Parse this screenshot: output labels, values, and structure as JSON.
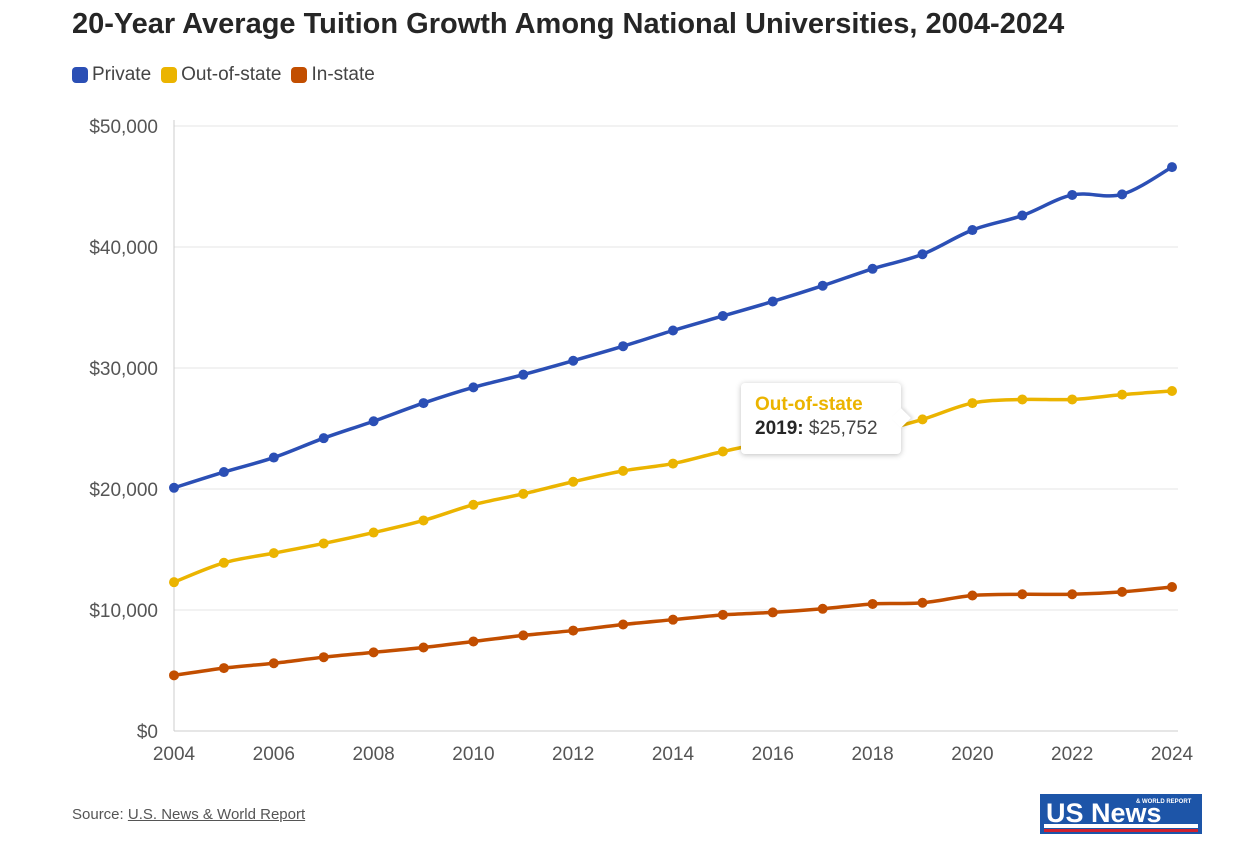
{
  "colors": {
    "private": "#2b4fb5",
    "out_of_state": "#ebb400",
    "in_state": "#c24e00",
    "logo_blue": "#1d55a8",
    "logo_red": "#d0202e"
  },
  "source": {
    "label": "Source:",
    "link": "U.S. News & World Report"
  },
  "logo": {
    "text_main": "US News",
    "text_small": "& WORLD REPORT"
  },
  "tooltip": {
    "series": "Out-of-state",
    "year": "2019:",
    "value": "$25,752"
  },
  "chart_data": {
    "type": "line",
    "title": "20-Year Average Tuition Growth Among National Universities, 2004-2024",
    "x": [
      2004,
      2005,
      2006,
      2007,
      2008,
      2009,
      2010,
      2011,
      2012,
      2013,
      2014,
      2015,
      2016,
      2017,
      2018,
      2019,
      2020,
      2021,
      2022,
      2023,
      2024
    ],
    "series": [
      {
        "name": "Private",
        "key": "private",
        "values": [
          20100,
          21400,
          22600,
          24200,
          25600,
          27100,
          28400,
          29450,
          30600,
          31800,
          33100,
          34300,
          35500,
          36800,
          38200,
          39400,
          41400,
          42600,
          44300,
          44350,
          46600
        ]
      },
      {
        "name": "Out-of-state",
        "key": "out_of_state",
        "values": [
          12300,
          13900,
          14700,
          15500,
          16400,
          17400,
          18700,
          19600,
          20600,
          21500,
          22100,
          23100,
          23900,
          24200,
          24700,
          25752,
          27100,
          27400,
          27400,
          27800,
          28100
        ]
      },
      {
        "name": "In-state",
        "key": "in_state",
        "values": [
          4600,
          5200,
          5600,
          6100,
          6500,
          6900,
          7400,
          7900,
          8300,
          8800,
          9200,
          9600,
          9800,
          10100,
          10500,
          10600,
          11200,
          11300,
          11300,
          11500,
          11900
        ]
      }
    ],
    "y_ticks": [
      "$0",
      "$10,000",
      "$20,000",
      "$30,000",
      "$40,000",
      "$50,000"
    ],
    "y_tick_values": [
      0,
      10000,
      20000,
      30000,
      40000,
      50000
    ],
    "x_ticks": [
      "2004",
      "2006",
      "2008",
      "2010",
      "2012",
      "2014",
      "2016",
      "2018",
      "2020",
      "2022",
      "2024"
    ],
    "x_tick_values": [
      2004,
      2006,
      2008,
      2010,
      2012,
      2014,
      2016,
      2018,
      2020,
      2022,
      2024
    ],
    "xlim": [
      2004,
      2024
    ],
    "ylim": [
      0,
      50000
    ],
    "grid": true,
    "legend": "top-left"
  }
}
